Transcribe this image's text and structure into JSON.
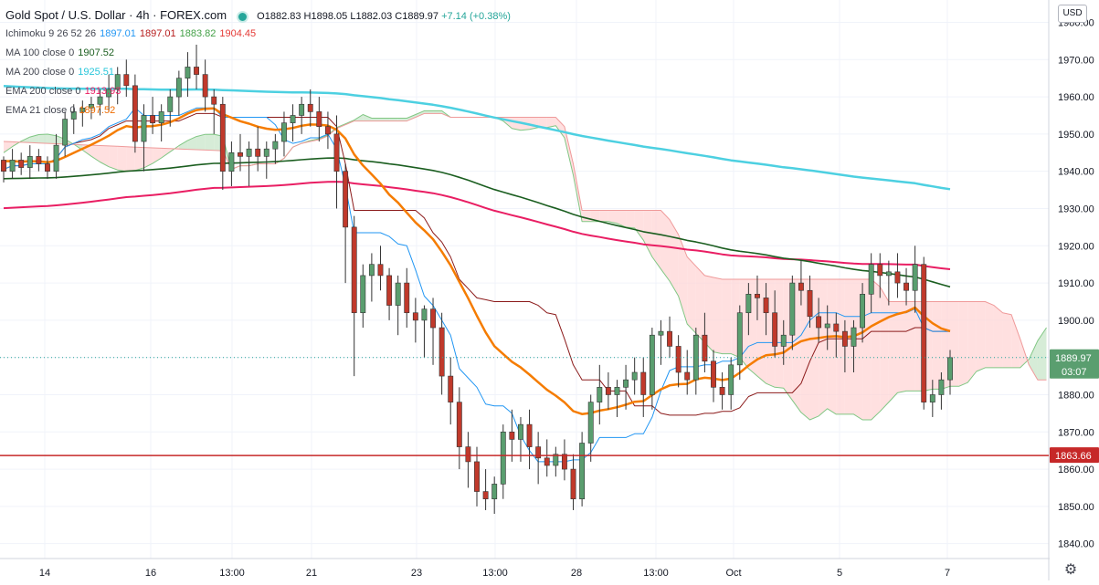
{
  "header": {
    "symbol": "Gold Spot / U.S. Dollar · 4h · FOREX.com",
    "ohlc": {
      "o": "O1882.83",
      "h": "H1898.05",
      "l": "L1882.03",
      "c": "C1889.97",
      "chg": "+7.14 (+0.38%)"
    },
    "currency_button": "USD"
  },
  "legend": [
    {
      "label": "Ichimoku 9 26 52 26",
      "values": [
        "1897.01",
        "1897.01",
        "1883.82",
        "1904.45"
      ],
      "colors": [
        "#2196f3",
        "#b71c1c",
        "#43a047",
        "#e53935"
      ]
    },
    {
      "label": "MA 100 close 0",
      "values": [
        "1907.52"
      ],
      "colors": [
        "#1b5e20"
      ]
    },
    {
      "label": "MA 200 close 0",
      "values": [
        "1925.51"
      ],
      "colors": [
        "#26c6da"
      ]
    },
    {
      "label": "EMA 200 close 0",
      "values": [
        "1913.93"
      ],
      "colors": [
        "#e91e63"
      ]
    },
    {
      "label": "EMA 21 close 0",
      "values": [
        "1897.52"
      ],
      "colors": [
        "#ef6c00"
      ]
    }
  ],
  "colors": {
    "up": "#26a69a",
    "down": "#ef5350",
    "bull_body": "#5a9e6f",
    "bear_body": "#c0392b",
    "ma100": "#1b5e20",
    "ma200": "#4dd0e1",
    "ema200": "#e91e63",
    "ema21": "#f57c00",
    "tenkan": "#2196f3",
    "kijun": "#8b1a1a",
    "cloud_bull": "#c8e6c9",
    "cloud_bear": "#ffd6d6",
    "support_line": "#c62828"
  },
  "chart_data": {
    "type": "candlestick",
    "y_axis": {
      "min": 1836,
      "max": 1986,
      "ticks": [
        1840,
        1850,
        1860,
        1870,
        1880,
        1890,
        1900,
        1910,
        1920,
        1930,
        1940,
        1950,
        1960,
        1970,
        1980
      ]
    },
    "x_labels": [
      "14",
      "16",
      "13:00",
      "21",
      "23",
      "13:00",
      "28",
      "13:00",
      "Oct",
      "5",
      "7"
    ],
    "price_tags": [
      {
        "value": 1889.97,
        "label": "1889.97",
        "sub": "03:07"
      },
      {
        "value": 1863.66,
        "label": "1863.66"
      }
    ],
    "support_level": 1863.66,
    "candles": [
      [
        1943,
        1944,
        1937,
        1940
      ],
      [
        1940,
        1946,
        1938,
        1943
      ],
      [
        1943,
        1945,
        1939,
        1941
      ],
      [
        1941,
        1947,
        1938,
        1944
      ],
      [
        1944,
        1946,
        1940,
        1942
      ],
      [
        1942,
        1944,
        1938,
        1940
      ],
      [
        1940,
        1950,
        1938,
        1947
      ],
      [
        1947,
        1956,
        1944,
        1954
      ],
      [
        1954,
        1958,
        1950,
        1956
      ],
      [
        1956,
        1959,
        1952,
        1957
      ],
      [
        1957,
        1960,
        1954,
        1958
      ],
      [
        1958,
        1962,
        1955,
        1960
      ],
      [
        1960,
        1966,
        1956,
        1962
      ],
      [
        1962,
        1968,
        1958,
        1966
      ],
      [
        1966,
        1970,
        1960,
        1963
      ],
      [
        1963,
        1966,
        1945,
        1948
      ],
      [
        1948,
        1958,
        1940,
        1955
      ],
      [
        1955,
        1960,
        1950,
        1953
      ],
      [
        1953,
        1958,
        1948,
        1956
      ],
      [
        1956,
        1962,
        1952,
        1960
      ],
      [
        1960,
        1967,
        1955,
        1965
      ],
      [
        1965,
        1972,
        1960,
        1968
      ],
      [
        1968,
        1974,
        1962,
        1966
      ],
      [
        1966,
        1970,
        1956,
        1960
      ],
      [
        1960,
        1962,
        1950,
        1958
      ],
      [
        1958,
        1960,
        1935,
        1940
      ],
      [
        1940,
        1948,
        1936,
        1945
      ],
      [
        1945,
        1950,
        1940,
        1944
      ],
      [
        1944,
        1948,
        1936,
        1946
      ],
      [
        1946,
        1952,
        1940,
        1944
      ],
      [
        1944,
        1948,
        1938,
        1946
      ],
      [
        1946,
        1950,
        1942,
        1948
      ],
      [
        1948,
        1956,
        1944,
        1953
      ],
      [
        1953,
        1958,
        1948,
        1955
      ],
      [
        1955,
        1960,
        1950,
        1958
      ],
      [
        1958,
        1962,
        1952,
        1956
      ],
      [
        1956,
        1960,
        1948,
        1952
      ],
      [
        1952,
        1956,
        1946,
        1950
      ],
      [
        1950,
        1955,
        1930,
        1940
      ],
      [
        1940,
        1942,
        1910,
        1925
      ],
      [
        1925,
        1928,
        1885,
        1902
      ],
      [
        1902,
        1915,
        1898,
        1912
      ],
      [
        1912,
        1918,
        1905,
        1915
      ],
      [
        1915,
        1920,
        1908,
        1912
      ],
      [
        1912,
        1914,
        1900,
        1904
      ],
      [
        1904,
        1912,
        1896,
        1910
      ],
      [
        1910,
        1914,
        1898,
        1902
      ],
      [
        1902,
        1906,
        1894,
        1900
      ],
      [
        1900,
        1904,
        1890,
        1903
      ],
      [
        1903,
        1906,
        1888,
        1898
      ],
      [
        1898,
        1902,
        1880,
        1885
      ],
      [
        1885,
        1890,
        1872,
        1878
      ],
      [
        1878,
        1882,
        1860,
        1866
      ],
      [
        1866,
        1870,
        1855,
        1862
      ],
      [
        1862,
        1866,
        1850,
        1854
      ],
      [
        1854,
        1860,
        1849,
        1852
      ],
      [
        1852,
        1858,
        1848,
        1856
      ],
      [
        1856,
        1872,
        1852,
        1870
      ],
      [
        1870,
        1876,
        1862,
        1868
      ],
      [
        1868,
        1874,
        1862,
        1872
      ],
      [
        1872,
        1876,
        1860,
        1866
      ],
      [
        1866,
        1870,
        1856,
        1863
      ],
      [
        1863,
        1868,
        1858,
        1861
      ],
      [
        1861,
        1866,
        1858,
        1864
      ],
      [
        1864,
        1868,
        1857,
        1860
      ],
      [
        1860,
        1864,
        1849,
        1852
      ],
      [
        1852,
        1870,
        1850,
        1867
      ],
      [
        1867,
        1880,
        1862,
        1878
      ],
      [
        1878,
        1888,
        1872,
        1882
      ],
      [
        1882,
        1886,
        1876,
        1880
      ],
      [
        1880,
        1884,
        1874,
        1882
      ],
      [
        1882,
        1888,
        1876,
        1884
      ],
      [
        1884,
        1890,
        1880,
        1886
      ],
      [
        1886,
        1890,
        1874,
        1880
      ],
      [
        1880,
        1898,
        1876,
        1896
      ],
      [
        1896,
        1900,
        1888,
        1897
      ],
      [
        1897,
        1901,
        1890,
        1893
      ],
      [
        1893,
        1896,
        1882,
        1886
      ],
      [
        1886,
        1892,
        1880,
        1884
      ],
      [
        1884,
        1898,
        1880,
        1896
      ],
      [
        1896,
        1902,
        1886,
        1889
      ],
      [
        1889,
        1892,
        1878,
        1882
      ],
      [
        1882,
        1886,
        1876,
        1880
      ],
      [
        1880,
        1890,
        1876,
        1888
      ],
      [
        1888,
        1904,
        1884,
        1902
      ],
      [
        1902,
        1910,
        1896,
        1907
      ],
      [
        1907,
        1912,
        1900,
        1906
      ],
      [
        1906,
        1910,
        1896,
        1902
      ],
      [
        1902,
        1908,
        1890,
        1893
      ],
      [
        1893,
        1900,
        1888,
        1896
      ],
      [
        1896,
        1912,
        1892,
        1910
      ],
      [
        1910,
        1916,
        1904,
        1908
      ],
      [
        1908,
        1912,
        1898,
        1901
      ],
      [
        1901,
        1906,
        1894,
        1898
      ],
      [
        1898,
        1904,
        1892,
        1899
      ],
      [
        1899,
        1902,
        1890,
        1897
      ],
      [
        1897,
        1900,
        1886,
        1893
      ],
      [
        1893,
        1900,
        1886,
        1898
      ],
      [
        1898,
        1910,
        1894,
        1907
      ],
      [
        1907,
        1918,
        1902,
        1915
      ],
      [
        1915,
        1918,
        1906,
        1912
      ],
      [
        1912,
        1916,
        1904,
        1913
      ],
      [
        1913,
        1918,
        1906,
        1910
      ],
      [
        1910,
        1914,
        1904,
        1908
      ],
      [
        1908,
        1920,
        1902,
        1915
      ],
      [
        1915,
        1917,
        1876,
        1878
      ],
      [
        1878,
        1884,
        1874,
        1880
      ],
      [
        1880,
        1886,
        1876,
        1884
      ],
      [
        1884,
        1892,
        1880,
        1889.97
      ]
    ]
  }
}
